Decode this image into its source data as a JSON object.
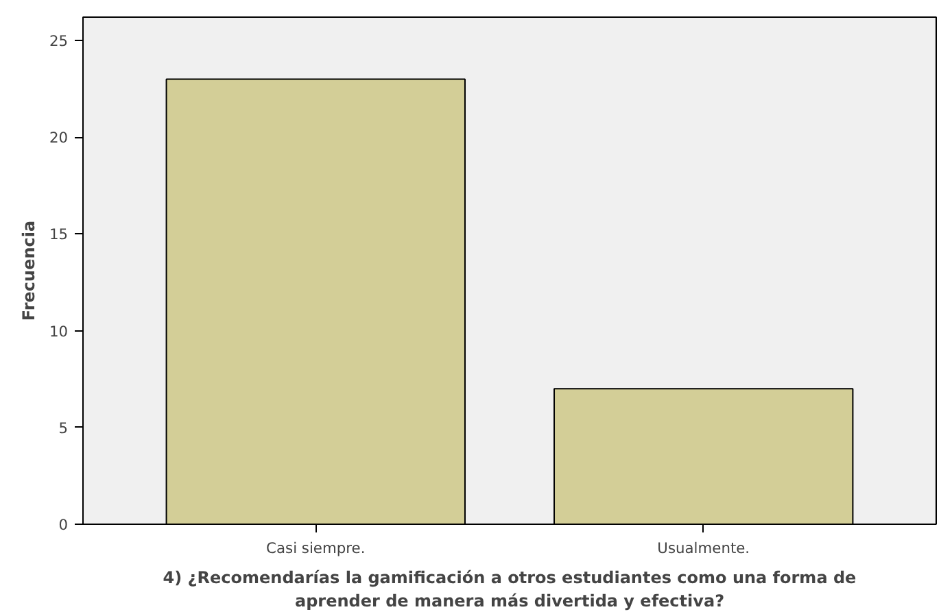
{
  "chart_data": {
    "type": "bar",
    "xlabel": "4) ¿Recomendarías la gamificación a otros estudiantes como una forma de aprender de manera más divertida y efectiva?",
    "ylabel": "Frecuencia",
    "categories": [
      "Casi siempre.",
      "Usualmente."
    ],
    "values": [
      23,
      7
    ],
    "color": "#d3ce97",
    "ylim": [
      0,
      26.2
    ],
    "yticks": [
      0,
      5,
      10,
      15,
      20,
      25
    ],
    "grid": false
  }
}
